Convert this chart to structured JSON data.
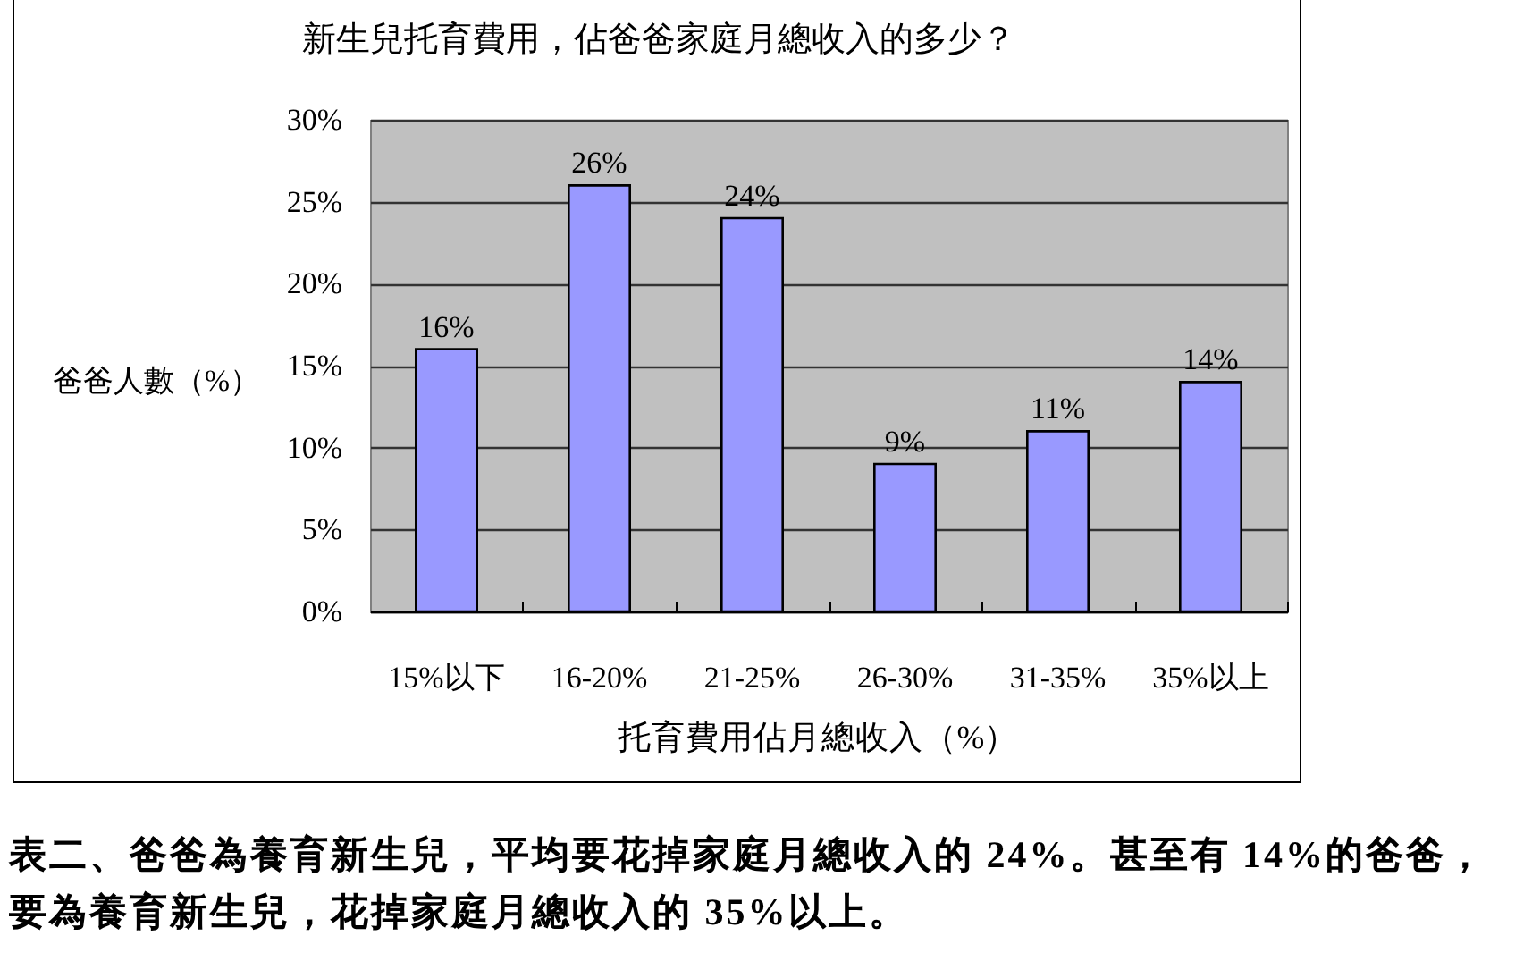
{
  "chart_data": {
    "type": "bar",
    "title": "新生兒托育費用，佔爸爸家庭月總收入的多少？",
    "xlabel": "托育費用佔月總收入（%）",
    "ylabel": "爸爸人數（%）",
    "categories": [
      "15%以下",
      "16-20%",
      "21-25%",
      "26-30%",
      "31-35%",
      "35%以上"
    ],
    "values": [
      16,
      26,
      24,
      9,
      11,
      14
    ],
    "value_labels": [
      "16%",
      "26%",
      "24%",
      "9%",
      "11%",
      "14%"
    ],
    "color": "#9999ff",
    "ylim": [
      0,
      30
    ],
    "yticks": [
      {
        "value": 0,
        "label": "0%"
      },
      {
        "value": 5,
        "label": "5%"
      },
      {
        "value": 10,
        "label": "10%"
      },
      {
        "value": 15,
        "label": "15%"
      },
      {
        "value": 20,
        "label": "20%"
      },
      {
        "value": 25,
        "label": "25%"
      },
      {
        "value": 30,
        "label": "30%"
      }
    ],
    "grid": "y",
    "annotations": [
      "表二、爸爸為養育新生兒，平均要花掉家庭月總收入的 24%。甚至有 14%的爸爸，要為養育新生兒，花掉家庭月總收入的 35%以上。"
    ]
  }
}
